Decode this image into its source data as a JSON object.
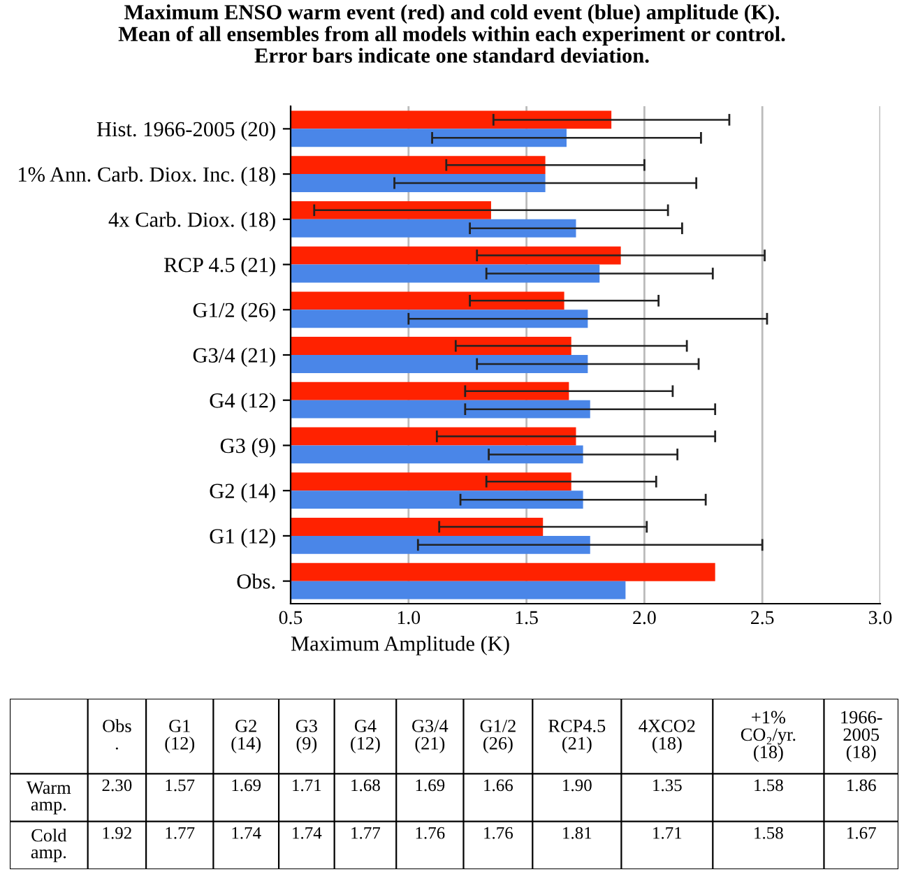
{
  "chart_data": [
    {
      "type": "bar",
      "orientation": "horizontal",
      "title": "Maximum ENSO warm event (red) and cold event (blue) amplitude (K).\nMean of all ensembles from all models within each experiment or control.\nError bars indicate one standard deviation.",
      "xlabel": "Maximum Amplitude (K)",
      "categories": [
        "Hist. 1966-2005 (20)",
        "1% Ann. Carb. Diox. Inc. (18)",
        "4x Carb. Diox. (18)",
        "RCP 4.5 (21)",
        "G1/2 (26)",
        "G3/4 (21)",
        "G4 (12)",
        "G3 (9)",
        "G2 (14)",
        "G1 (12)",
        "Obs."
      ],
      "series": [
        {
          "color": "#ff2200",
          "values": [
            1.86,
            1.58,
            1.35,
            1.9,
            1.66,
            1.69,
            1.68,
            1.71,
            1.69,
            1.57,
            2.3
          ],
          "errors": [
            0.5,
            0.42,
            0.75,
            0.61,
            0.4,
            0.49,
            0.44,
            0.59,
            0.36,
            0.44,
            null
          ]
        },
        {
          "color": "#4a86e8",
          "values": [
            1.67,
            1.58,
            1.71,
            1.81,
            1.76,
            1.76,
            1.77,
            1.74,
            1.74,
            1.77,
            1.92
          ],
          "errors": [
            0.57,
            0.64,
            0.45,
            0.48,
            0.76,
            0.47,
            0.53,
            0.4,
            0.52,
            0.73,
            null
          ]
        }
      ],
      "xlim": [
        0.5,
        3.0
      ],
      "xticks": [
        {
          "value": 0.5,
          "label": "0.5"
        },
        {
          "value": 1.0,
          "label": "1.0"
        },
        {
          "value": 1.5,
          "label": "1.5"
        },
        {
          "value": 2.0,
          "label": "2.0"
        },
        {
          "value": 2.5,
          "label": "2.5"
        },
        {
          "value": 3.0,
          "label": "3.0"
        }
      ],
      "grid": "x",
      "legend": false
    },
    {
      "type": "other",
      "categories": [
        "Obs\n.",
        "G1\n(12)",
        "G2\n(14)",
        "G3\n(9)",
        "G4\n(12)",
        "G3/4\n(21)",
        "G1/2\n(26)",
        "RCP4.5\n(21)",
        "4XCO2\n(18)",
        "+1%\nCO₂/yr.\n(18)",
        "1966-\n2005\n(18)"
      ],
      "y_categories": [
        "Warm\namp.",
        "Cold\namp."
      ],
      "cell_labels": [
        [
          "2.30",
          "1.57",
          "1.69",
          "1.71",
          "1.68",
          "1.69",
          "1.66",
          "1.90",
          "1.35",
          "1.58",
          "1.86"
        ],
        [
          "1.92",
          "1.77",
          "1.74",
          "1.74",
          "1.77",
          "1.76",
          "1.76",
          "1.81",
          "1.71",
          "1.58",
          "1.67"
        ]
      ]
    }
  ]
}
